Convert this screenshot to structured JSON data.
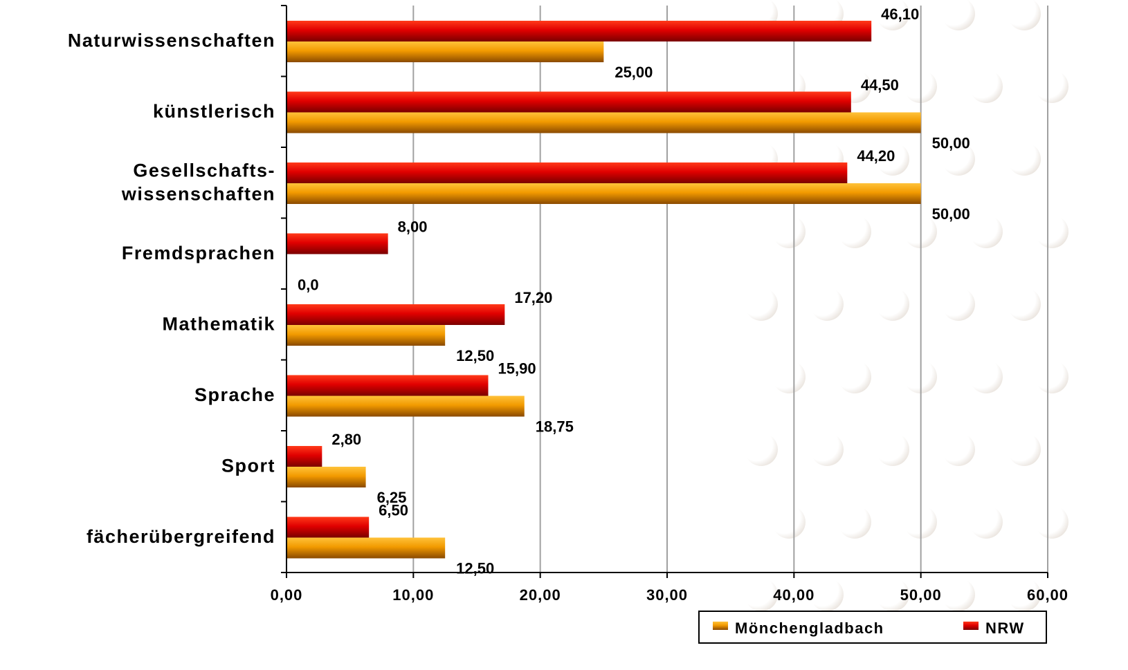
{
  "chart_data": {
    "type": "bar",
    "orientation": "horizontal",
    "categories": [
      [
        "Naturwissenschaften"
      ],
      [
        "künstlerisch"
      ],
      [
        "Gesellschafts-",
        "wissenschaften"
      ],
      [
        "Fremdsprachen"
      ],
      [
        "Mathematik"
      ],
      [
        "Sprache"
      ],
      [
        "Sport"
      ],
      [
        "fächerübergreifend"
      ]
    ],
    "series": [
      {
        "name": "NRW",
        "color": "#d40000",
        "values": [
          46.1,
          44.5,
          44.2,
          8.0,
          17.2,
          15.9,
          2.8,
          6.5
        ],
        "labels": [
          "46,10",
          "44,50",
          "44,20",
          "8,00",
          "17,20",
          "15,90",
          "2,80",
          "6,50"
        ]
      },
      {
        "name": "Mönchengladbach",
        "color": "#f29a00",
        "values": [
          25.0,
          50.0,
          50.0,
          0.0,
          12.5,
          18.75,
          6.25,
          12.5
        ],
        "labels": [
          "25,00",
          "50,00",
          "50,00",
          "0,0",
          "12,50",
          "18,75",
          "6,25",
          "12,50"
        ]
      }
    ],
    "xlim": [
      0,
      60
    ],
    "xticks": [
      0,
      10,
      20,
      30,
      40,
      50,
      60
    ],
    "xtick_labels": [
      "0,00",
      "10,00",
      "20,00",
      "30,00",
      "40,00",
      "50,00",
      "60,00"
    ],
    "grid": "vertical",
    "legend": {
      "placement": "bottom-right",
      "entries": [
        "Mönchengladbach",
        "NRW"
      ]
    }
  }
}
